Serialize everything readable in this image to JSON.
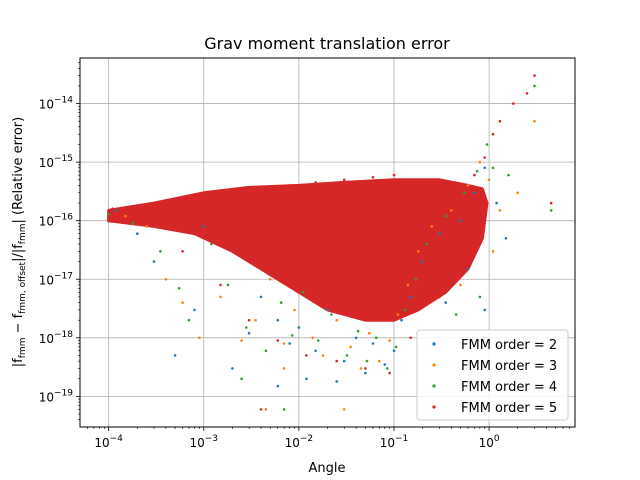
{
  "chart_data": {
    "type": "scatter",
    "title": "Grav moment translation error",
    "xlabel": "Angle",
    "ylabel_parts": {
      "prefix": "|f",
      "sub1": "fmm",
      "mid": " − f",
      "sub2": "fmm, offset",
      "mid2": "|/|f",
      "sub3": "fmm",
      "suffix": "| (Relative error)"
    },
    "x_scale": "log",
    "y_scale": "log",
    "xlim": [
      5e-05,
      8
    ],
    "ylim": [
      3e-20,
      6e-14
    ],
    "x_ticks": [
      {
        "value": 0.0001,
        "base": "10",
        "exp": "−4"
      },
      {
        "value": 0.001,
        "base": "10",
        "exp": "−3"
      },
      {
        "value": 0.01,
        "base": "10",
        "exp": "−2"
      },
      {
        "value": 0.1,
        "base": "10",
        "exp": "−1"
      },
      {
        "value": 1,
        "base": "10",
        "exp": "0"
      }
    ],
    "y_ticks": [
      {
        "value": 1e-19,
        "base": "10",
        "exp": "−19"
      },
      {
        "value": 1e-18,
        "base": "10",
        "exp": "−18"
      },
      {
        "value": 1e-17,
        "base": "10",
        "exp": "−17"
      },
      {
        "value": 1e-16,
        "base": "10",
        "exp": "−16"
      },
      {
        "value": 1e-15,
        "base": "10",
        "exp": "−15"
      },
      {
        "value": 1e-14,
        "base": "10",
        "exp": "−14"
      }
    ],
    "grid": true,
    "legend_position": "bottom-right",
    "series": [
      {
        "name": "FMM order = 2",
        "color": "#1f77b4",
        "points": [
          [
            0.00012,
            1.5e-16
          ],
          [
            0.0002,
            6e-17
          ],
          [
            0.0003,
            2e-17
          ],
          [
            0.0005,
            5e-19
          ],
          [
            0.0008,
            3e-18
          ],
          [
            0.001,
            8e-17
          ],
          [
            0.002,
            3e-19
          ],
          [
            0.003,
            1.2e-18
          ],
          [
            0.004,
            5e-18
          ],
          [
            0.006,
            2e-18
          ],
          [
            0.008,
            8e-19
          ],
          [
            0.01,
            1.5e-18
          ],
          [
            0.015,
            6e-19
          ],
          [
            0.02,
            3e-18
          ],
          [
            0.03,
            4e-19
          ],
          [
            0.04,
            1e-18
          ],
          [
            0.05,
            2.5e-19
          ],
          [
            0.06,
            8e-19
          ],
          [
            0.08,
            3.5e-19
          ],
          [
            0.1,
            6e-19
          ],
          [
            0.12,
            2e-18
          ],
          [
            0.15,
            5e-18
          ],
          [
            0.2,
            2e-17
          ],
          [
            0.3,
            6e-17
          ],
          [
            0.5,
            1e-16
          ],
          [
            0.7,
            3e-16
          ],
          [
            0.9,
            8e-16
          ],
          [
            1.2,
            2e-16
          ],
          [
            1.5,
            5e-17
          ],
          [
            0.006,
            1.5e-19
          ],
          [
            0.012,
            2e-19
          ],
          [
            0.025,
            1.8e-19
          ],
          [
            0.9,
            3e-18
          ],
          [
            0.6,
            1.5e-17
          ],
          [
            0.35,
            4e-18
          ]
        ]
      },
      {
        "name": "FMM order = 3",
        "color": "#ff7f0e",
        "points": [
          [
            0.00015,
            1.2e-16
          ],
          [
            0.00025,
            8e-17
          ],
          [
            0.0004,
            1e-17
          ],
          [
            0.0006,
            4e-18
          ],
          [
            0.0009,
            1e-18
          ],
          [
            0.0015,
            5e-18
          ],
          [
            0.0025,
            9e-19
          ],
          [
            0.0035,
            2e-18
          ],
          [
            0.005,
            1e-17
          ],
          [
            0.007,
            8e-19
          ],
          [
            0.009,
            3e-18
          ],
          [
            0.014,
            1e-18
          ],
          [
            0.018,
            5e-19
          ],
          [
            0.025,
            2e-18
          ],
          [
            0.035,
            7e-19
          ],
          [
            0.045,
            3e-19
          ],
          [
            0.055,
            1.2e-18
          ],
          [
            0.07,
            4e-19
          ],
          [
            0.09,
            9e-19
          ],
          [
            0.11,
            2.5e-18
          ],
          [
            0.14,
            8e-18
          ],
          [
            0.18,
            3e-17
          ],
          [
            0.25,
            8e-17
          ],
          [
            0.4,
            1.5e-16
          ],
          [
            0.6,
            4e-16
          ],
          [
            0.8,
            1e-15
          ],
          [
            1.0,
            5e-16
          ],
          [
            1.3,
            1.5e-16
          ],
          [
            2.0,
            3e-16
          ],
          [
            3.0,
            5e-15
          ],
          [
            0.0045,
            6e-20
          ],
          [
            0.03,
            6e-20
          ],
          [
            0.5,
            8e-18
          ],
          [
            1.1,
            3e-17
          ],
          [
            0.007,
            3e-19
          ]
        ]
      },
      {
        "name": "FMM order = 4",
        "color": "#2ca02c",
        "points": [
          [
            0.0001,
            1.3e-16
          ],
          [
            0.00018,
            9e-17
          ],
          [
            0.00035,
            3e-17
          ],
          [
            0.00055,
            7e-18
          ],
          [
            0.0007,
            2e-18
          ],
          [
            0.0012,
            4e-17
          ],
          [
            0.0018,
            8e-18
          ],
          [
            0.0028,
            1.5e-18
          ],
          [
            0.0045,
            6e-19
          ],
          [
            0.0065,
            4e-18
          ],
          [
            0.0085,
            1.1e-18
          ],
          [
            0.011,
            6e-18
          ],
          [
            0.016,
            9e-19
          ],
          [
            0.022,
            2.5e-18
          ],
          [
            0.032,
            5e-19
          ],
          [
            0.042,
            1.3e-18
          ],
          [
            0.052,
            4e-19
          ],
          [
            0.065,
            1e-18
          ],
          [
            0.085,
            3e-19
          ],
          [
            0.105,
            7e-19
          ],
          [
            0.13,
            3e-18
          ],
          [
            0.17,
            1e-17
          ],
          [
            0.22,
            4e-17
          ],
          [
            0.35,
            1.2e-16
          ],
          [
            0.55,
            3e-16
          ],
          [
            0.75,
            7e-16
          ],
          [
            0.95,
            2e-15
          ],
          [
            1.1,
            8e-16
          ],
          [
            1.6,
            6e-16
          ],
          [
            3.0,
            2e-14
          ],
          [
            0.007,
            6e-20
          ],
          [
            0.0025,
            2e-19
          ],
          [
            0.45,
            2.5e-18
          ],
          [
            0.8,
            5e-18
          ],
          [
            4.5,
            1.5e-16
          ]
        ]
      },
      {
        "name": "FMM order = 5",
        "color": "#d62728",
        "points": [
          [
            0.00011,
            1.6e-16
          ],
          [
            0.00022,
            1.1e-16
          ],
          [
            0.00045,
            2e-16
          ],
          [
            0.0008,
            1.8e-16
          ],
          [
            0.0013,
            3e-16
          ],
          [
            0.002,
            2.5e-16
          ],
          [
            0.004,
            3.5e-16
          ],
          [
            0.008,
            4e-16
          ],
          [
            0.015,
            4.5e-16
          ],
          [
            0.03,
            5e-16
          ],
          [
            0.06,
            5.5e-16
          ],
          [
            0.1,
            6e-16
          ],
          [
            0.2,
            5e-16
          ],
          [
            0.4,
            4e-16
          ],
          [
            0.7,
            6e-16
          ],
          [
            0.9,
            1.2e-15
          ],
          [
            1.1,
            3e-15
          ],
          [
            1.3,
            5e-15
          ],
          [
            1.8,
            1e-14
          ],
          [
            2.5,
            1.5e-14
          ],
          [
            3.0,
            3e-14
          ],
          [
            4.5,
            2e-16
          ],
          [
            0.0006,
            3e-17
          ],
          [
            0.0015,
            8e-18
          ],
          [
            0.003,
            2e-18
          ],
          [
            0.006,
            9e-19
          ],
          [
            0.012,
            5e-19
          ],
          [
            0.025,
            4e-19
          ],
          [
            0.05,
            3e-19
          ],
          [
            0.09,
            2.5e-19
          ],
          [
            0.15,
            1e-18
          ],
          [
            0.3,
            5e-18
          ],
          [
            0.6,
            2e-17
          ],
          [
            0.85,
            8e-17
          ],
          [
            0.004,
            6e-20
          ]
        ]
      }
    ],
    "dense_region": {
      "series": "FMM order = 5",
      "color": "#d62728",
      "boundary": [
        [
          0.0001,
          1.5e-16
        ],
        [
          0.0003,
          2e-16
        ],
        [
          0.001,
          3e-16
        ],
        [
          0.003,
          3.7e-16
        ],
        [
          0.01,
          4e-16
        ],
        [
          0.03,
          4.5e-16
        ],
        [
          0.1,
          5e-16
        ],
        [
          0.3,
          5e-16
        ],
        [
          0.6,
          4e-16
        ],
        [
          0.85,
          3.5e-16
        ],
        [
          0.95,
          2e-16
        ],
        [
          0.85,
          5e-17
        ],
        [
          0.6,
          1.5e-17
        ],
        [
          0.35,
          6e-18
        ],
        [
          0.18,
          3e-18
        ],
        [
          0.1,
          2e-18
        ],
        [
          0.05,
          2e-18
        ],
        [
          0.02,
          3e-18
        ],
        [
          0.01,
          6e-18
        ],
        [
          0.004,
          1.5e-17
        ],
        [
          0.002,
          3e-17
        ],
        [
          0.0008,
          6e-17
        ],
        [
          0.0003,
          8e-17
        ],
        [
          0.0001,
          1e-16
        ]
      ]
    }
  }
}
